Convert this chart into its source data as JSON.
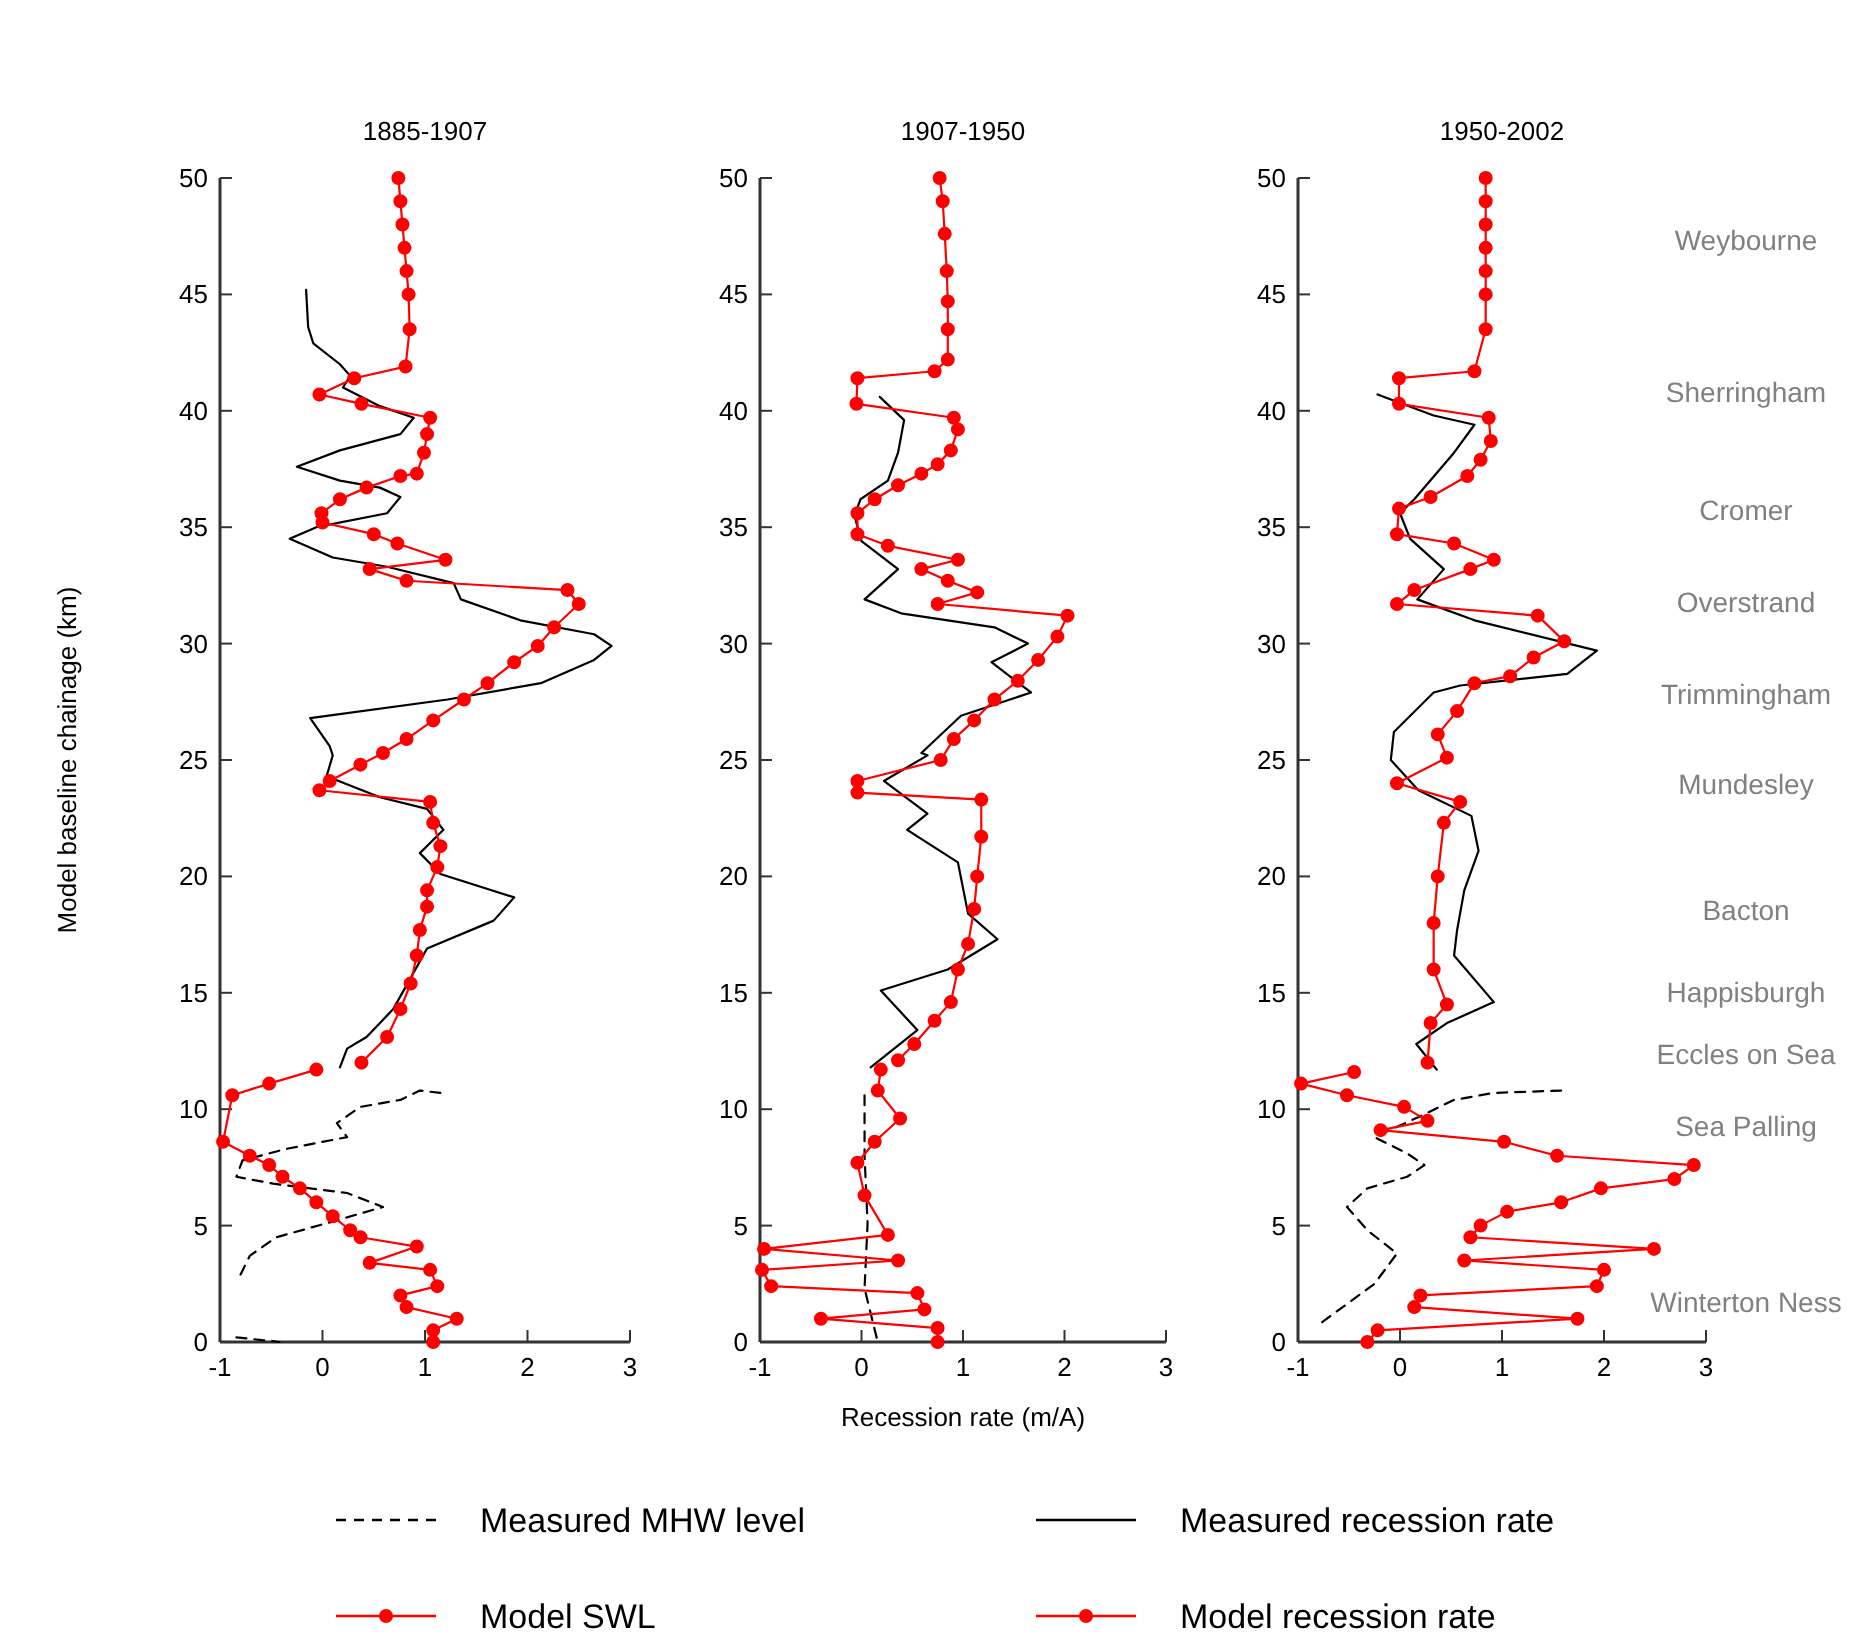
{
  "chart_data": [
    {
      "type": "line",
      "title": "1885-1907",
      "ylabel": "Model baseline chainage (km)",
      "xlim": [
        -1,
        3
      ],
      "xticks": [
        -1,
        0,
        1,
        2,
        3
      ],
      "ylim": [
        0,
        50
      ],
      "yticks": [
        0,
        5,
        10,
        15,
        20,
        25,
        30,
        35,
        40,
        45,
        50
      ],
      "grid": false,
      "series": [
        {
          "color": "#000000",
          "line_style": "dashed",
          "marker": "none",
          "x": [
            1.15,
            0.95,
            0.76,
            0.37,
            0.14,
            0.24,
            -0.35,
            -0.78,
            -0.84,
            -0.48,
            0.24,
            0.59,
            0.04,
            -0.45,
            -0.71,
            -0.81,
            null,
            -0.84,
            -0.42
          ],
          "values": [
            10.7,
            10.8,
            10.4,
            10.1,
            9.4,
            8.8,
            8.3,
            7.8,
            7.1,
            6.8,
            6.4,
            5.8,
            5.1,
            4.5,
            3.7,
            2.8,
            null,
            0.2,
            0
          ]
        },
        {
          "color": "#000000",
          "line_style": "solid",
          "marker": "none",
          "x": [
            -0.16,
            -0.14,
            -0.09,
            0.17,
            0.27,
            0.2,
            0.56,
            0.89,
            0.76,
            0.17,
            -0.25,
            0.17,
            0.56,
            0.76,
            0.63,
            -0.06,
            -0.32,
            0.1,
            0.63,
            1.28,
            1.35,
            1.93,
            2.65,
            2.82,
            2.65,
            2.13,
            1.22,
            -0.12,
            0.07,
            0.1,
            0.04,
            0.56,
            1.02,
            1.18,
            0.95,
            1.15,
            1.87,
            1.67,
            1.02,
            0.69,
            0.43,
            0.24,
            0.17
          ],
          "values": [
            45.2,
            43.6,
            42.9,
            42,
            41.5,
            41,
            40.2,
            39.7,
            39,
            38.3,
            37.6,
            37,
            36.7,
            36.3,
            35.6,
            35,
            34.5,
            33.7,
            33.3,
            32.6,
            31.9,
            31,
            30.4,
            29.9,
            29.3,
            28.3,
            27.6,
            26.8,
            25.6,
            25.2,
            24.3,
            23.4,
            22.9,
            22,
            21,
            20.1,
            19.1,
            18.1,
            16.9,
            14.3,
            13.1,
            12.6,
            11.8
          ]
        },
        {
          "color": "#ff0000",
          "line_style": "solid",
          "marker": "circle",
          "x": [
            -0.06,
            -0.52,
            -0.88,
            -0.97,
            -0.71,
            -0.52,
            -0.39,
            -0.22,
            -0.06,
            0.1,
            0.27,
            0.37,
            0.92,
            0.46,
            1.05,
            1.12,
            0.76,
            0.82,
            1.31,
            1.08,
            1.08
          ],
          "values": [
            11.7,
            11.1,
            10.6,
            8.6,
            8,
            7.6,
            7.1,
            6.6,
            6,
            5.4,
            4.8,
            4.5,
            4.1,
            3.4,
            3.1,
            2.4,
            2,
            1.5,
            1,
            0.5,
            0
          ]
        },
        {
          "color": "#ff0000",
          "line_style": "solid",
          "marker": "circle",
          "x": [
            0.74,
            0.76,
            0.78,
            0.8,
            0.82,
            0.84,
            0.85,
            0.81,
            0.31,
            -0.03,
            0.38,
            1.05,
            1.02,
            0.99,
            0.92,
            0.76,
            0.43,
            0.17,
            -0.01,
            0,
            0.5,
            0.73,
            1.2,
            0.46,
            0.82,
            2.39,
            2.5,
            2.26,
            2.1,
            1.87,
            1.61,
            1.38,
            1.08,
            0.82,
            0.59,
            0.37,
            0.07,
            -0.03,
            1.05,
            1.08,
            1.15,
            1.12,
            1.02,
            1.02,
            0.95,
            0.92,
            0.86,
            0.76,
            0.63,
            0.38
          ],
          "values": [
            50,
            49,
            48,
            47,
            46,
            45,
            43.5,
            41.9,
            41.4,
            40.7,
            40.3,
            39.7,
            39,
            38.2,
            37.3,
            37.2,
            36.7,
            36.2,
            35.6,
            35.2,
            34.7,
            34.3,
            33.6,
            33.2,
            32.7,
            32.3,
            31.7,
            30.7,
            29.9,
            29.2,
            28.3,
            27.6,
            26.7,
            25.9,
            25.3,
            24.8,
            24.1,
            23.7,
            23.2,
            22.3,
            21.3,
            20.4,
            19.4,
            18.7,
            17.7,
            16.6,
            15.4,
            14.3,
            13.1,
            12
          ]
        }
      ]
    },
    {
      "type": "line",
      "title": "1907-1950",
      "xlabel": "Recession rate (m/A)",
      "xlim": [
        -1,
        3
      ],
      "xticks": [
        -1,
        0,
        1,
        2,
        3
      ],
      "ylim": [
        0,
        50
      ],
      "yticks": [
        0,
        5,
        10,
        15,
        20,
        25,
        30,
        35,
        40,
        45,
        50
      ],
      "grid": false,
      "legend": "bottom",
      "series": [
        {
          "name": "Measured MHW level",
          "color": "#000000",
          "line_style": "dashed",
          "marker": "none",
          "x": [
            0.03,
            0.03,
            0.06,
            0.03,
            0.16
          ],
          "values": [
            10.6,
            8,
            5.1,
            2.3,
            0
          ]
        },
        {
          "name": "Measured recession rate",
          "color": "#000000",
          "line_style": "solid",
          "marker": "none",
          "x": [
            0.18,
            0.42,
            0.36,
            0.26,
            -0.01,
            -0.07,
            0,
            0.36,
            0.03,
            0.39,
            1.31,
            1.64,
            1.28,
            1.67,
            0.98,
            0.59,
            0.65,
            0.22,
            0.65,
            0.45,
            0.95,
            1.05,
            1.34,
            0.85,
            0.19,
            0.55,
            0.09
          ],
          "values": [
            40.6,
            39.6,
            38.2,
            37,
            36.2,
            35.5,
            34.4,
            33.2,
            31.9,
            31.3,
            30.7,
            30,
            29.2,
            27.9,
            26.9,
            25.3,
            25.2,
            24.1,
            22.7,
            22,
            20.6,
            18.4,
            17.3,
            16,
            15.1,
            13.4,
            11.8
          ]
        },
        {
          "name": "Model SWL",
          "color": "#ff0000",
          "line_style": "solid",
          "marker": "circle",
          "x": [
            0.19,
            0.16,
            0.38,
            0.13,
            -0.04,
            0.03,
            0.26,
            -0.96,
            0.36,
            -0.98,
            -0.89,
            0.55,
            0.62,
            -0.4,
            0.75,
            0.75
          ],
          "values": [
            11.7,
            10.8,
            9.6,
            8.6,
            7.7,
            6.3,
            4.6,
            4,
            3.5,
            3.1,
            2.4,
            2.1,
            1.4,
            1,
            0.6,
            0
          ]
        },
        {
          "name": "Model recession rate",
          "color": "#ff0000",
          "line_style": "solid",
          "marker": "circle",
          "x": [
            0.77,
            0.8,
            0.82,
            0.84,
            0.85,
            0.85,
            0.85,
            0.72,
            -0.04,
            -0.05,
            0.91,
            0.95,
            0.88,
            0.75,
            0.59,
            0.36,
            0.13,
            -0.04,
            -0.04,
            0.26,
            0.95,
            0.59,
            0.85,
            1.14,
            0.75,
            2.03,
            1.93,
            1.74,
            1.54,
            1.31,
            1.11,
            0.91,
            0.78,
            -0.04,
            -0.04,
            1.18,
            1.18,
            1.14,
            1.11,
            1.05,
            0.95,
            0.88,
            0.72,
            0.52,
            0.36
          ],
          "values": [
            50,
            49,
            47.6,
            46,
            44.7,
            43.5,
            42.2,
            41.7,
            41.4,
            40.3,
            39.7,
            39.2,
            38.3,
            37.7,
            37.3,
            36.8,
            36.2,
            35.6,
            34.7,
            34.2,
            33.6,
            33.2,
            32.7,
            32.2,
            31.7,
            31.2,
            30.3,
            29.3,
            28.4,
            27.6,
            26.7,
            25.9,
            25,
            24.1,
            23.6,
            23.3,
            21.7,
            20,
            18.6,
            17.1,
            16,
            14.6,
            13.8,
            12.8,
            12.1
          ]
        }
      ]
    },
    {
      "type": "line",
      "title": "1950-2002",
      "xlim": [
        -1,
        3
      ],
      "xticks": [
        -1,
        0,
        1,
        2,
        3
      ],
      "ylim": [
        0,
        50
      ],
      "yticks": [
        0,
        5,
        10,
        15,
        20,
        25,
        30,
        35,
        40,
        45,
        50
      ],
      "grid": false,
      "annotations": [
        "Weybourne",
        "Sherringham",
        "Cromer",
        "Overstrand",
        "Trimmingham",
        "Mundesley",
        "Bacton",
        "Happisburgh",
        "Eccles on Sea",
        "Sea Palling",
        "Winterton Ness"
      ],
      "series": [
        {
          "color": "#000000",
          "line_style": "dashed",
          "marker": "none",
          "x": [
            1.58,
            0.92,
            0.53,
            0.2,
            -0.25,
            0.07,
            0.24,
            0.07,
            -0.32,
            -0.52,
            -0.32,
            -0.03,
            -0.25,
            -0.78
          ],
          "values": [
            10.8,
            10.7,
            10.4,
            9.7,
            8.8,
            8.1,
            7.6,
            7.1,
            6.6,
            5.8,
            4.8,
            3.8,
            2.5,
            0.8
          ]
        },
        {
          "color": "#000000",
          "line_style": "solid",
          "marker": "none",
          "x": [
            -0.22,
            0.33,
            0.73,
            0.53,
            0.14,
            0,
            0.1,
            0.43,
            0.17,
            0.73,
            1.93,
            1.64,
            0.59,
            0.33,
            -0.06,
            -0.09,
            0.18,
            0.7,
            0.77,
            0.63,
            0.56,
            0.53,
            0.92,
            0.46,
            0.16,
            0.36
          ],
          "values": [
            40.7,
            39.8,
            39.4,
            38.2,
            36.2,
            35.6,
            34.5,
            33.2,
            31.9,
            31,
            29.7,
            28.7,
            28.2,
            27.9,
            26.2,
            25,
            23.7,
            22.6,
            21.1,
            19.4,
            17.7,
            16.6,
            14.6,
            13.7,
            12.8,
            11.7
          ]
        },
        {
          "color": "#ff0000",
          "line_style": "solid",
          "marker": "circle",
          "x": [
            -0.45,
            -0.97,
            -0.52,
            0.04,
            0.27,
            -0.19,
            1.02,
            1.54,
            2.88,
            2.69,
            1.97,
            1.58,
            1.05,
            0.79,
            0.69,
            2.49,
            0.63,
            2,
            1.93,
            0.2,
            0.14,
            1.74,
            -0.22,
            -0.32
          ],
          "values": [
            11.6,
            11.1,
            10.6,
            10.1,
            9.5,
            9.1,
            8.6,
            8,
            7.6,
            7,
            6.6,
            6,
            5.6,
            5,
            4.5,
            4,
            3.5,
            3.1,
            2.4,
            2,
            1.5,
            1,
            0.5,
            0
          ]
        },
        {
          "color": "#ff0000",
          "line_style": "solid",
          "marker": "circle",
          "x": [
            0.84,
            0.84,
            0.84,
            0.84,
            0.84,
            0.84,
            0.84,
            0.73,
            -0.01,
            -0.01,
            0.87,
            0.89,
            0.79,
            0.66,
            0.3,
            -0.01,
            -0.03,
            0.53,
            0.92,
            0.69,
            0.14,
            -0.03,
            1.35,
            1.61,
            1.31,
            1.08,
            0.73,
            0.56,
            0.37,
            0.46,
            -0.03,
            0.59,
            0.43,
            0.37,
            0.33,
            0.33,
            0.46,
            0.3,
            0.27
          ],
          "values": [
            50,
            49,
            48,
            47,
            46,
            45,
            43.5,
            41.7,
            41.4,
            40.3,
            39.7,
            38.7,
            37.9,
            37.2,
            36.3,
            35.8,
            34.7,
            34.3,
            33.6,
            33.2,
            32.3,
            31.7,
            31.2,
            30.1,
            29.4,
            28.6,
            28.3,
            27.1,
            26.1,
            25.1,
            24,
            23.2,
            22.3,
            20,
            18,
            16,
            14.5,
            13.7,
            12
          ]
        }
      ]
    }
  ]
}
